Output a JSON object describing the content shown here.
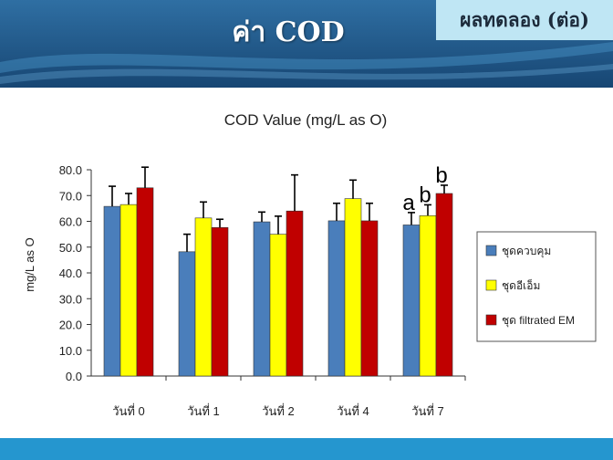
{
  "slide": {
    "title": "ค่า COD",
    "badge": "ผลทดลอง (ต่อ)"
  },
  "colors": {
    "header_dark": "#1d4f7c",
    "header_light": "#3d86b9",
    "footer": "#2596cf",
    "badge_bg": "#bfe6f4"
  },
  "chart_data": {
    "type": "bar",
    "title": "COD Value (mg/L as O)",
    "xlabel": "",
    "ylabel": "mg/L as O",
    "ylim": [
      0,
      80
    ],
    "yticks": [
      "0.0",
      "10.0",
      "20.0",
      "30.0",
      "40.0",
      "50.0",
      "60.0",
      "70.0",
      "80.0"
    ],
    "categories": [
      "วันที่ 0",
      "วันที่ 1",
      "วันที่ 2",
      "วันที่ 4",
      "วันที่ 7"
    ],
    "series": [
      {
        "name": "ชุดควบคุม",
        "color": "#4a7ebb",
        "values": [
          65.8,
          48.2,
          59.8,
          60.2,
          58.6
        ],
        "errors": [
          7.8,
          6.8,
          3.8,
          6.8,
          4.8
        ]
      },
      {
        "name": "ชุดอีเอ็ม",
        "color": "#ffff00",
        "values": [
          66.5,
          61.3,
          55.0,
          68.8,
          62.2
        ],
        "errors": [
          4.3,
          6.2,
          7.0,
          7.2,
          4.2
        ]
      },
      {
        "name": "ชุด filtrated EM",
        "color": "#c00000",
        "values": [
          73.0,
          57.6,
          64.0,
          60.2,
          70.8
        ],
        "errors": [
          8.0,
          3.2,
          14.0,
          6.8,
          3.2
        ]
      }
    ],
    "annotations": [
      {
        "category": "วันที่ 7",
        "series": "ชุดควบคุม",
        "text": "a"
      },
      {
        "category": "วันที่ 7",
        "series": "ชุดอีเอ็ม",
        "text": "b"
      },
      {
        "category": "วันที่ 7",
        "series": "ชุด filtrated EM",
        "text": "b"
      }
    ],
    "grid": false,
    "legend": "right"
  }
}
